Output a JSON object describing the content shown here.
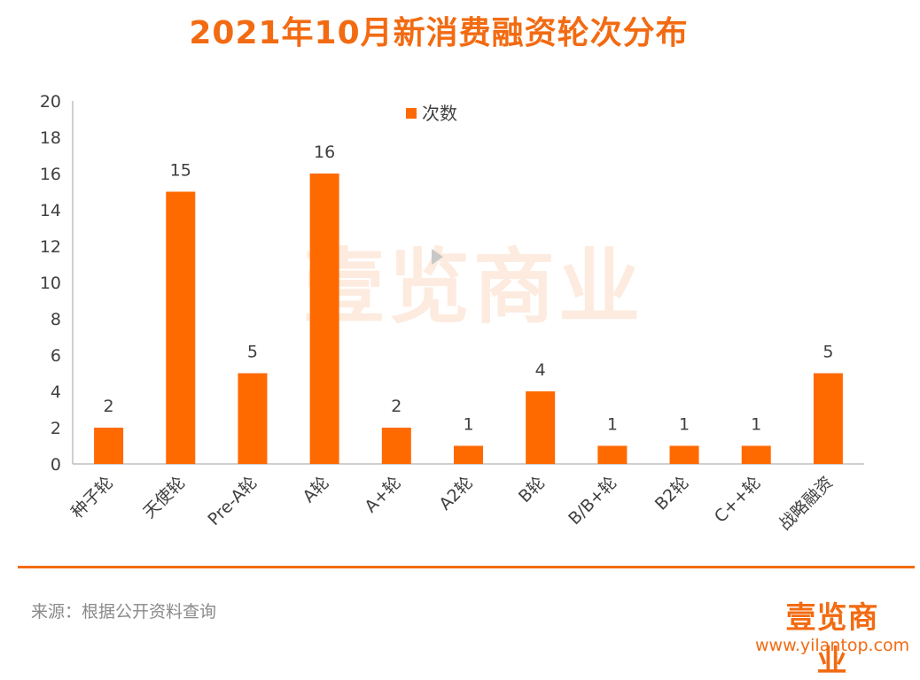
{
  "title": "2021年10月新消费融资轮次分布",
  "watermark": "壹览商业",
  "source": "来源：根据公开资料查询",
  "brand": {
    "logo": "壹览商业",
    "url": "www.yilantop.com"
  },
  "colors": {
    "accent": "#F26B12",
    "bar": "#FF6A00",
    "axis": "#bfbfbf",
    "text": "#404040"
  },
  "chart_data": {
    "type": "bar",
    "title": "2021年10月新消费融资轮次分布",
    "xlabel": "",
    "ylabel": "",
    "ylim": [
      0,
      20
    ],
    "yticks": [
      0,
      2,
      4,
      6,
      8,
      10,
      12,
      14,
      16,
      18,
      20
    ],
    "categories": [
      "种子轮",
      "天使轮",
      "Pre-A轮",
      "A轮",
      "A+轮",
      "A2轮",
      "B轮",
      "B/B+轮",
      "B2轮",
      "C++轮",
      "战略融资"
    ],
    "series": [
      {
        "name": "次数",
        "values": [
          2,
          15,
          5,
          16,
          2,
          1,
          4,
          1,
          1,
          1,
          5
        ]
      }
    ],
    "legend": "top-center",
    "grid": false
  }
}
